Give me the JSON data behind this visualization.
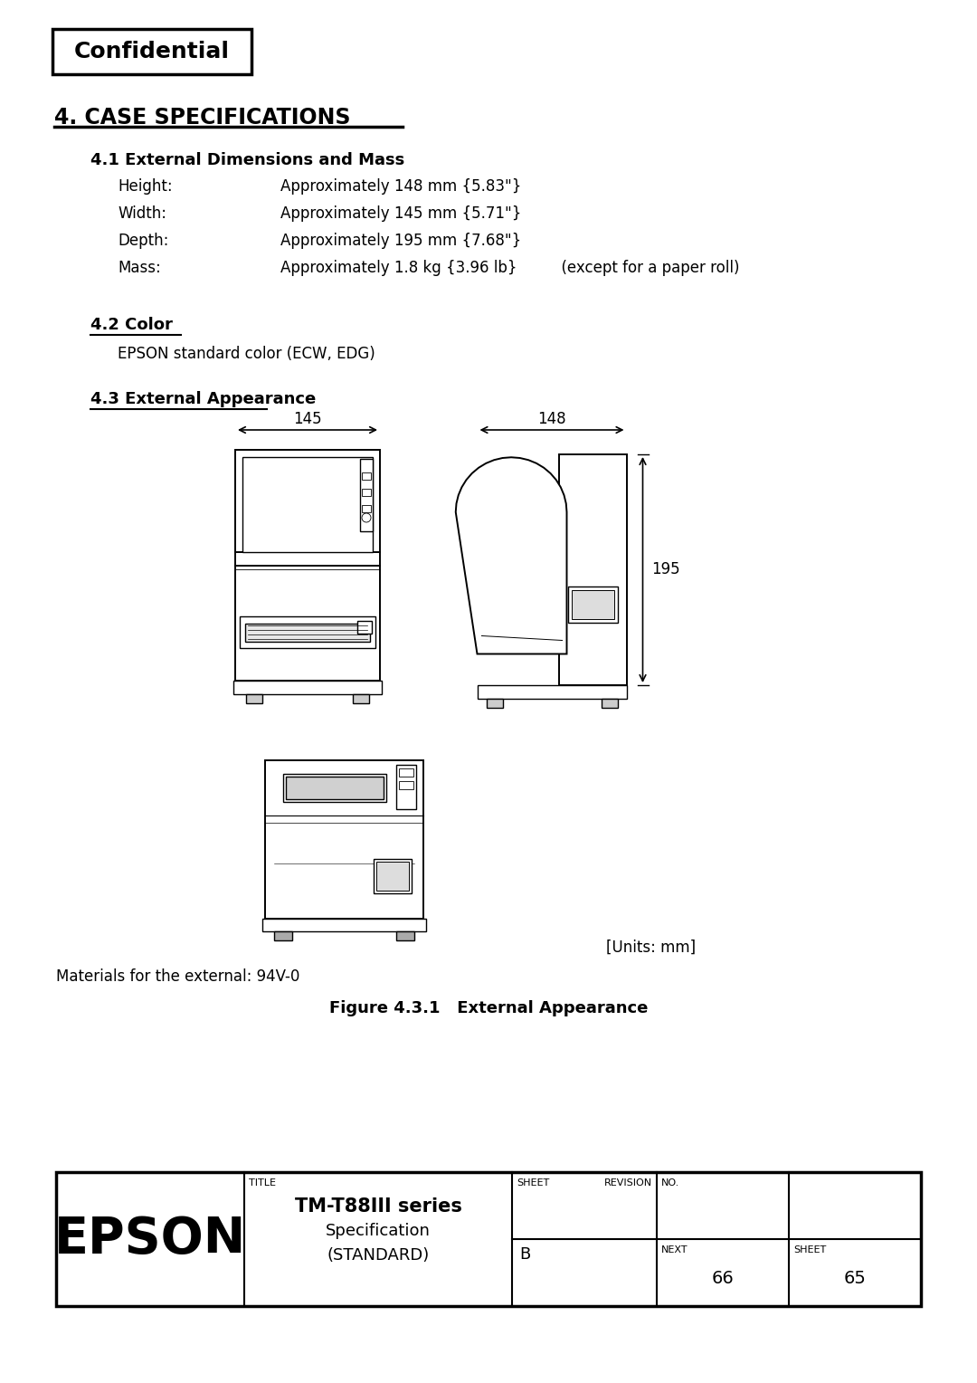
{
  "bg_color": "#ffffff",
  "confidential_text": "Confidential",
  "section_title": "4. CASE SPECIFICATIONS",
  "subsection_41": "4.1 External Dimensions and Mass",
  "specs": [
    {
      "label": "Height:",
      "value": "Approximately 148 mm {5.83\"}"
    },
    {
      "label": "Width:",
      "value": "Approximately 145 mm {5.71\"}"
    },
    {
      "label": "Depth:",
      "value": "Approximately 195 mm {7.68\"}"
    },
    {
      "label": "Mass:",
      "value": "Approximately 1.8 kg {3.96 lb}",
      "extra": "  (except for a paper roll)"
    }
  ],
  "subsection_42": "4.2 Color",
  "color_text": "EPSON standard color (ECW, EDG)",
  "subsection_43": "4.3 External Appearance",
  "dim_145": "145",
  "dim_148": "148",
  "dim_195": "195",
  "units_text": "[Units: mm]",
  "materials_text": "Materials for the external: 94V-0",
  "figure_caption": "Figure 4.3.1   External Appearance",
  "footer_epson": "EPSON",
  "footer_title": "TM-T88III series",
  "footer_subtitle1": "Specification",
  "footer_subtitle2": "(STANDARD)",
  "footer_sheet_label": "SHEET",
  "footer_revision_label": "REVISION",
  "footer_revision_value": "B",
  "footer_no_label": "NO.",
  "footer_next_label": "NEXT",
  "footer_next_value": "66",
  "footer_sheet_value": "SHEET",
  "footer_sheet_num": "65"
}
